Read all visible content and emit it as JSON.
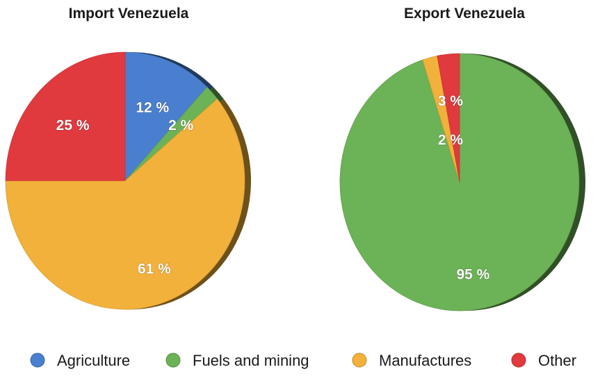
{
  "colors": {
    "Agriculture": "#4a7fcf",
    "Fuels and mining": "#6cb256",
    "Manufactures": "#f2b13a",
    "Other": "#e0393e"
  },
  "legend": [
    "Agriculture",
    "Fuels and mining",
    "Manufactures",
    "Other"
  ],
  "chart_data": [
    {
      "type": "pie",
      "title": "Import Venezuela",
      "categories": [
        "Agriculture",
        "Fuels and mining",
        "Manufactures",
        "Other"
      ],
      "values": [
        12,
        2,
        61,
        25
      ],
      "labels": [
        "12 %",
        "2 %",
        "61 %",
        "25 %"
      ],
      "legend_position": "bottom"
    },
    {
      "type": "pie",
      "title": "Export Venezuela",
      "categories": [
        "Fuels and mining",
        "Manufactures",
        "Other"
      ],
      "values": [
        95,
        2,
        3
      ],
      "labels": [
        "95 %",
        "2 %",
        "3 %"
      ],
      "legend_position": "bottom"
    }
  ]
}
